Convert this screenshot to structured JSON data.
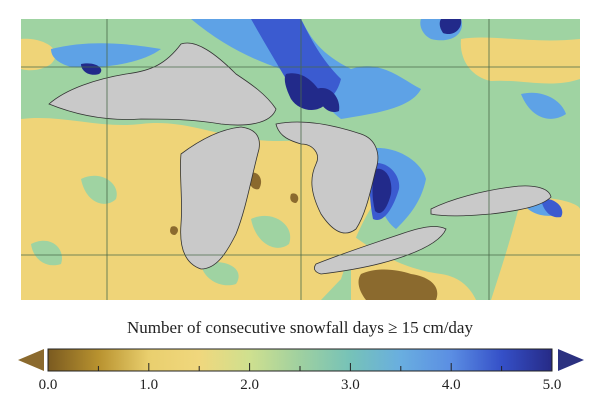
{
  "legend": {
    "title": "Number of consecutive snowfall days ≥ 15 cm/day",
    "ticks": [
      "0.0",
      "1.0",
      "2.0",
      "3.0",
      "4.0",
      "5.0"
    ],
    "range": [
      0,
      5
    ],
    "colors": {
      "min_extend": "#8b6a2e",
      "stops": [
        "#7a5a20",
        "#b8922f",
        "#e9cf6e",
        "#f0d77d",
        "#cfe08f",
        "#9fd0a0",
        "#76c2b8",
        "#69aee0",
        "#5b8ee3",
        "#3550c8",
        "#262a86"
      ],
      "max_extend": "#2b3180"
    }
  },
  "map": {
    "colors": {
      "background": "#9fd3a2",
      "low_zone": "#efd478",
      "very_low": "#8b6a2e",
      "mid_blue": "#5ea2e6",
      "high_blue": "#3b5bd0",
      "max_blue": "#222a8a",
      "water": "#c9c9c9",
      "grid": "#4a6a4a"
    }
  }
}
